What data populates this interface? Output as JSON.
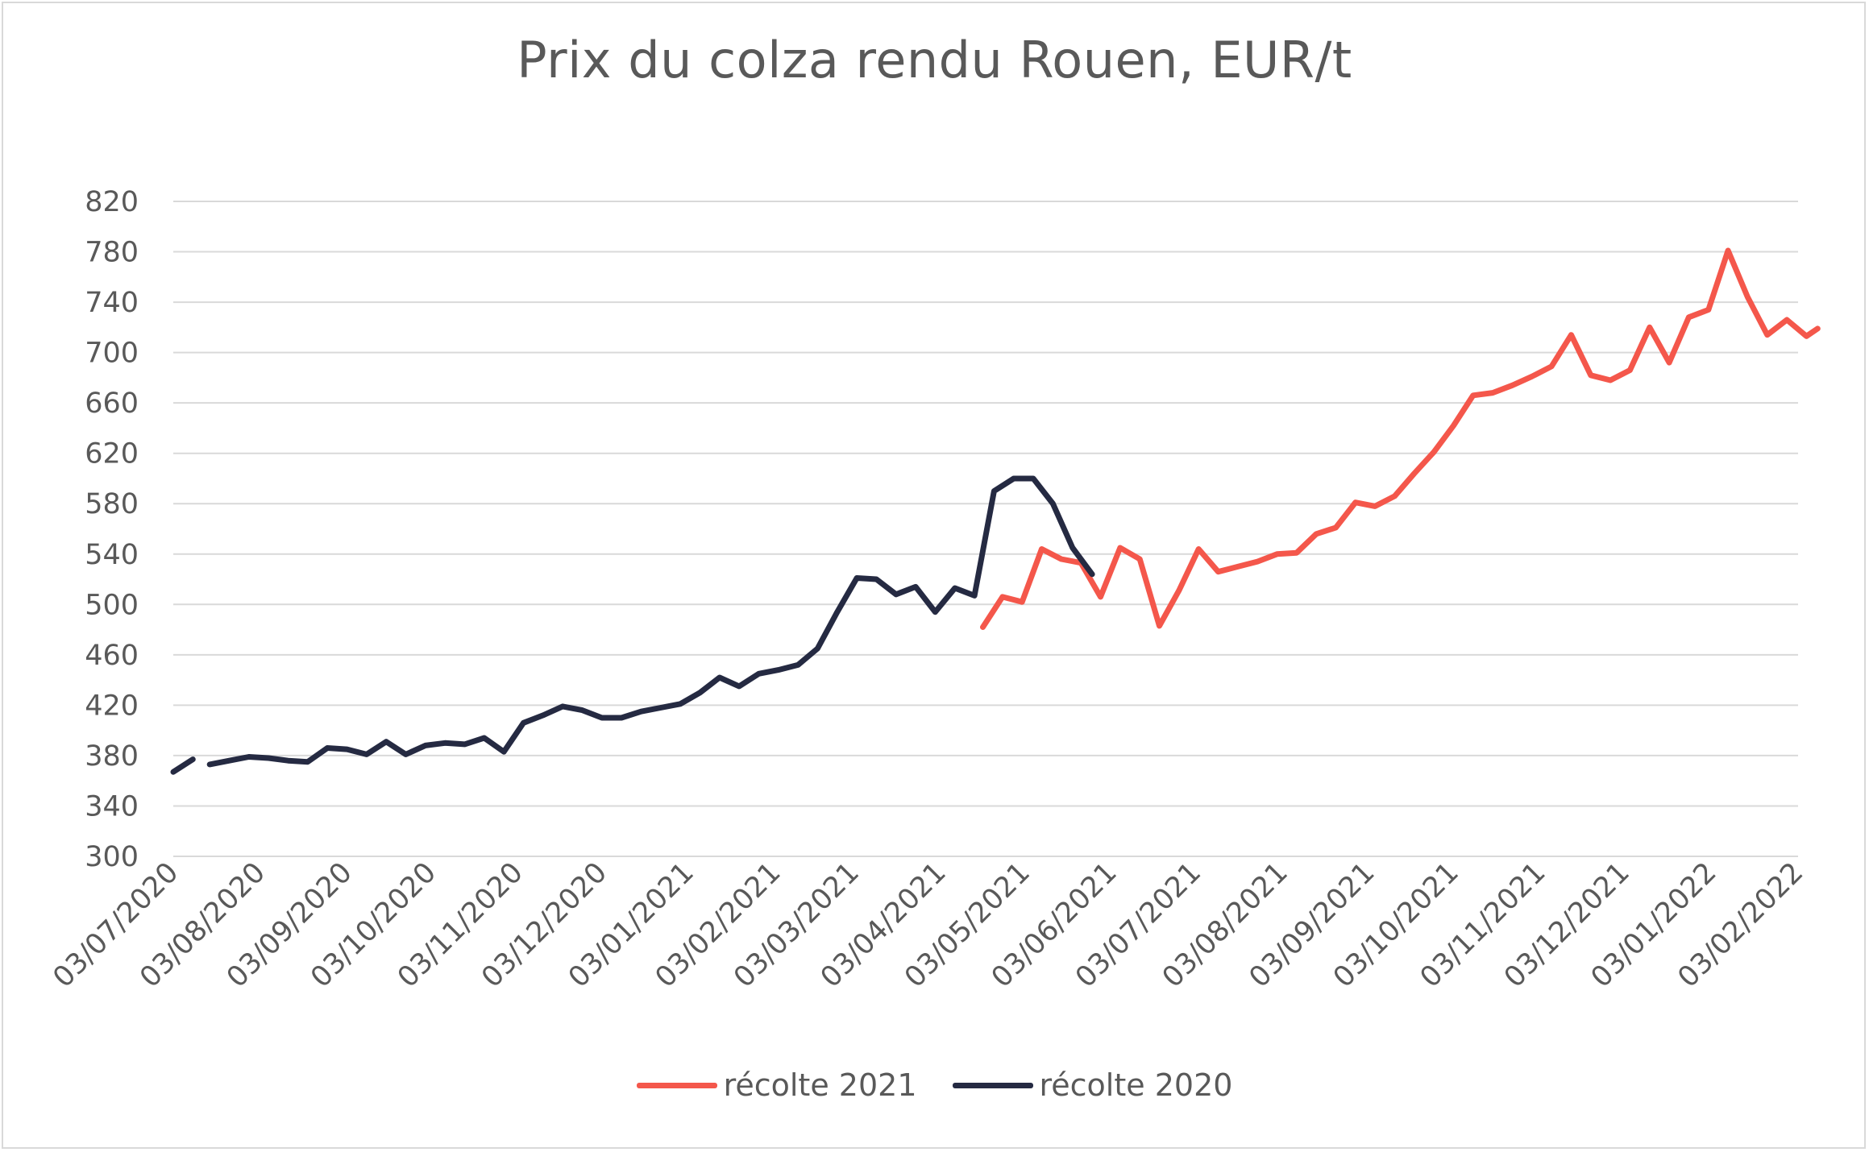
{
  "chart_data": {
    "type": "line",
    "title": "Prix du colza rendu Rouen, EUR/t",
    "xlabel": "",
    "ylabel": "",
    "ylim": [
      300,
      820
    ],
    "yticks": [
      820,
      780,
      740,
      700,
      660,
      620,
      580,
      540,
      500,
      460,
      420,
      380,
      340,
      300
    ],
    "xlim": [
      "2020-07-03",
      "2022-02-03"
    ],
    "x_tick_labels": [
      "03/07/2020",
      "03/08/2020",
      "03/09/2020",
      "03/10/2020",
      "03/11/2020",
      "03/12/2020",
      "03/01/2021",
      "03/02/2021",
      "03/03/2021",
      "03/04/2021",
      "03/05/2021",
      "03/06/2021",
      "03/07/2021",
      "03/08/2021",
      "03/09/2021",
      "03/10/2021",
      "03/11/2021",
      "03/12/2021",
      "03/01/2022",
      "03/02/2022"
    ],
    "x_tick_dates": [
      "2020-07-03",
      "2020-08-03",
      "2020-09-03",
      "2020-10-03",
      "2020-11-03",
      "2020-12-03",
      "2021-01-03",
      "2021-02-03",
      "2021-03-03",
      "2021-04-03",
      "2021-05-03",
      "2021-06-03",
      "2021-07-03",
      "2021-08-03",
      "2021-09-03",
      "2021-10-03",
      "2021-11-03",
      "2021-12-03",
      "2022-01-03",
      "2022-02-03"
    ],
    "grid": true,
    "legend": "bottom",
    "series": [
      {
        "name": "récolte 2021",
        "color": "#f4574b",
        "points": [
          [
            "2021-04-18",
            482
          ],
          [
            "2021-04-25",
            506
          ],
          [
            "2021-05-02",
            502
          ],
          [
            "2021-05-09",
            544
          ],
          [
            "2021-05-16",
            536
          ],
          [
            "2021-05-23",
            533
          ],
          [
            "2021-05-30",
            506
          ],
          [
            "2021-06-06",
            545
          ],
          [
            "2021-06-13",
            536
          ],
          [
            "2021-06-20",
            483
          ],
          [
            "2021-06-27",
            511
          ],
          [
            "2021-07-04",
            544
          ],
          [
            "2021-07-11",
            526
          ],
          [
            "2021-07-18",
            530
          ],
          [
            "2021-07-25",
            534
          ],
          [
            "2021-08-01",
            540
          ],
          [
            "2021-08-08",
            541
          ],
          [
            "2021-08-15",
            556
          ],
          [
            "2021-08-22",
            561
          ],
          [
            "2021-08-29",
            581
          ],
          [
            "2021-09-05",
            578
          ],
          [
            "2021-09-12",
            586
          ],
          [
            "2021-09-19",
            604
          ],
          [
            "2021-09-26",
            621
          ],
          [
            "2021-10-03",
            642
          ],
          [
            "2021-10-10",
            666
          ],
          [
            "2021-10-17",
            668
          ],
          [
            "2021-10-24",
            674
          ],
          [
            "2021-10-31",
            681
          ],
          [
            "2021-11-07",
            689
          ],
          [
            "2021-11-14",
            714
          ],
          [
            "2021-11-21",
            682
          ],
          [
            "2021-11-28",
            678
          ],
          [
            "2021-12-05",
            686
          ],
          [
            "2021-12-12",
            720
          ],
          [
            "2021-12-19",
            692
          ],
          [
            "2021-12-26",
            728
          ],
          [
            "2022-01-02",
            734
          ],
          [
            "2022-01-09",
            781
          ],
          [
            "2022-01-16",
            744
          ],
          [
            "2022-01-23",
            714
          ],
          [
            "2022-01-30",
            726
          ],
          [
            "2022-02-06",
            713
          ],
          [
            "2022-02-10",
            719
          ]
        ]
      },
      {
        "name": "récolte 2020",
        "color": "#252a42",
        "segments": [
          [
            [
              "2020-07-03",
              367
            ],
            [
              "2020-07-10",
              377
            ]
          ],
          [
            [
              "2020-07-16",
              373
            ],
            [
              "2020-07-23",
              376
            ],
            [
              "2020-07-30",
              379
            ],
            [
              "2020-08-06",
              378
            ],
            [
              "2020-08-13",
              376
            ],
            [
              "2020-08-20",
              375
            ],
            [
              "2020-08-27",
              386
            ],
            [
              "2020-09-03",
              385
            ],
            [
              "2020-09-10",
              381
            ],
            [
              "2020-09-17",
              391
            ],
            [
              "2020-09-24",
              381
            ],
            [
              "2020-10-01",
              388
            ],
            [
              "2020-10-08",
              390
            ],
            [
              "2020-10-15",
              389
            ],
            [
              "2020-10-22",
              394
            ],
            [
              "2020-10-29",
              383
            ],
            [
              "2020-11-05",
              406
            ],
            [
              "2020-11-12",
              412
            ],
            [
              "2020-11-19",
              419
            ],
            [
              "2020-11-26",
              416
            ],
            [
              "2020-12-03",
              410
            ],
            [
              "2020-12-10",
              410
            ],
            [
              "2020-12-17",
              415
            ],
            [
              "2020-12-24",
              418
            ],
            [
              "2020-12-31",
              421
            ],
            [
              "2021-01-07",
              430
            ],
            [
              "2021-01-14",
              442
            ],
            [
              "2021-01-21",
              435
            ],
            [
              "2021-01-28",
              445
            ],
            [
              "2021-02-04",
              448
            ],
            [
              "2021-02-11",
              452
            ],
            [
              "2021-02-18",
              465
            ],
            [
              "2021-02-25",
              494
            ],
            [
              "2021-03-04",
              521
            ],
            [
              "2021-03-11",
              520
            ],
            [
              "2021-03-18",
              508
            ],
            [
              "2021-03-25",
              514
            ],
            [
              "2021-04-01",
              494
            ],
            [
              "2021-04-08",
              513
            ],
            [
              "2021-04-15",
              507
            ],
            [
              "2021-04-22",
              590
            ],
            [
              "2021-04-29",
              600
            ],
            [
              "2021-05-06",
              600
            ],
            [
              "2021-05-13",
              580
            ],
            [
              "2021-05-20",
              545
            ],
            [
              "2021-05-27",
              524
            ]
          ]
        ]
      }
    ]
  }
}
